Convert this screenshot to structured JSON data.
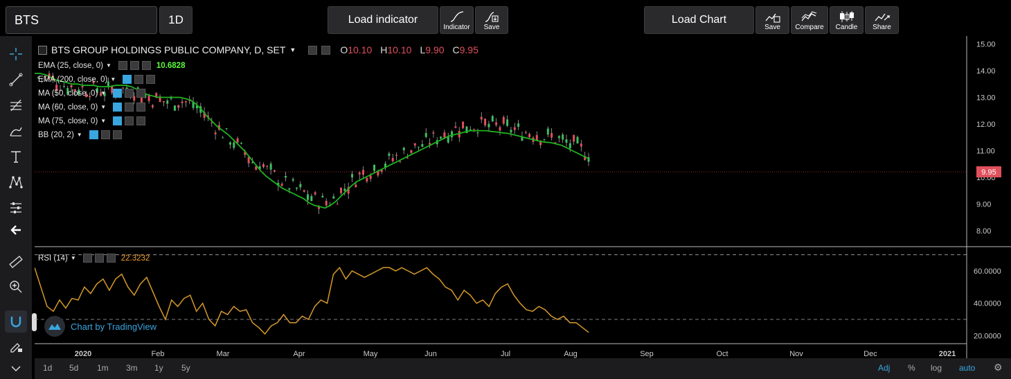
{
  "toolbar": {
    "symbol_value": "BTS",
    "timeframe": "1D",
    "load_indicator": "Load indicator",
    "indicator": "Indicator",
    "save_indicator": "Save",
    "load_chart": "Load Chart",
    "save_chart": "Save",
    "compare": "Compare",
    "candle": "Candle",
    "share": "Share"
  },
  "legend": {
    "title": "BTS GROUP HOLDINGS PUBLIC COMPANY, D, SET",
    "o_label": "O",
    "o_value": "10.10",
    "h_label": "H",
    "h_value": "10.10",
    "l_label": "L",
    "l_value": "9.90",
    "c_label": "C",
    "c_value": "9.95",
    "indicators": [
      {
        "label": "EMA (25, close, 0)",
        "value": "10.6828"
      },
      {
        "label": "EMA (200, close, 0)",
        "value": ""
      },
      {
        "label": "MA (50, close, 0)",
        "value": ""
      },
      {
        "label": "MA (60, close, 0)",
        "value": ""
      },
      {
        "label": "MA (75, close, 0)",
        "value": ""
      },
      {
        "label": "BB (20, 2)",
        "value": ""
      }
    ],
    "rsi_label": "RSI (14)",
    "rsi_value": "22.3232"
  },
  "watermark": "Chart by TradingView",
  "last_price_tag": "9.95",
  "colors": {
    "ema": "#1fb31f",
    "rsi": "#d69a2a",
    "up": "#3cbf60",
    "down": "#e0505c",
    "accent": "#39a6e0"
  },
  "chart_data": {
    "type": "line",
    "price_axis_ticks": [
      "15.00",
      "14.00",
      "13.00",
      "12.00",
      "11.00",
      "10.00",
      "9.00",
      "8.00"
    ],
    "rsi_axis_ticks": [
      "60.0000",
      "40.0000",
      "20.0000"
    ],
    "time_ticks": [
      "2020",
      "Feb",
      "Mar",
      "Apr",
      "May",
      "Jun",
      "Jul",
      "Aug",
      "Sep",
      "Oct",
      "Nov",
      "Dec",
      "2021"
    ],
    "price_ylim": [
      7.4,
      15.3
    ],
    "rsi_ylim": [
      15,
      75
    ],
    "rsi_bands": [
      70,
      30
    ],
    "series": [
      {
        "values": [
          13.9,
          13.9,
          13.85,
          13.75,
          13.65,
          13.6,
          13.55,
          13.5,
          13.5,
          13.45,
          13.45,
          13.45,
          13.4,
          13.4,
          13.4,
          13.45,
          13.45,
          13.45,
          13.4,
          13.3,
          13.2,
          13.1,
          13.05,
          13.0,
          13.0,
          13.0,
          13.0,
          13.0,
          12.95,
          12.9,
          12.75,
          12.55,
          12.3,
          12.1,
          11.9,
          11.75,
          11.6,
          11.4,
          11.2,
          11.0,
          10.75,
          10.5,
          10.25,
          10.05,
          9.9,
          9.75,
          9.6,
          9.5,
          9.4,
          9.3,
          9.2,
          9.05,
          8.95,
          8.9,
          8.85,
          8.95,
          9.1,
          9.3,
          9.5,
          9.7,
          9.85,
          9.95,
          10.05,
          10.15,
          10.25,
          10.35,
          10.45,
          10.55,
          10.65,
          10.75,
          10.85,
          10.95,
          11.05,
          11.15,
          11.25,
          11.35,
          11.45,
          11.55,
          11.6,
          11.65,
          11.7,
          11.75,
          11.75,
          11.75,
          11.75,
          11.72,
          11.7,
          11.67,
          11.65,
          11.6,
          11.55,
          11.5,
          11.45,
          11.4,
          11.35,
          11.32,
          11.3,
          11.25,
          11.2,
          11.1,
          11.0,
          10.9,
          10.8,
          10.7
        ]
      },
      {
        "values": [
          62,
          50,
          38,
          35,
          42,
          37,
          43,
          42,
          50,
          46,
          52,
          55,
          48,
          55,
          58,
          50,
          45,
          52,
          56,
          47,
          38,
          30,
          42,
          38,
          43,
          45,
          35,
          40,
          30,
          26,
          35,
          33,
          38,
          35,
          36,
          28,
          25,
          21,
          26,
          28,
          33,
          28,
          28,
          32,
          30,
          38,
          42,
          40,
          58,
          62,
          55,
          60,
          58,
          56,
          58,
          60,
          62,
          62,
          60,
          62,
          60,
          58,
          60,
          62,
          58,
          55,
          50,
          48,
          42,
          48,
          45,
          40,
          42,
          38,
          46,
          50,
          52,
          45,
          40,
          36,
          35,
          38,
          36,
          32,
          30,
          32,
          28,
          28,
          25,
          22
        ]
      }
    ]
  }
}
